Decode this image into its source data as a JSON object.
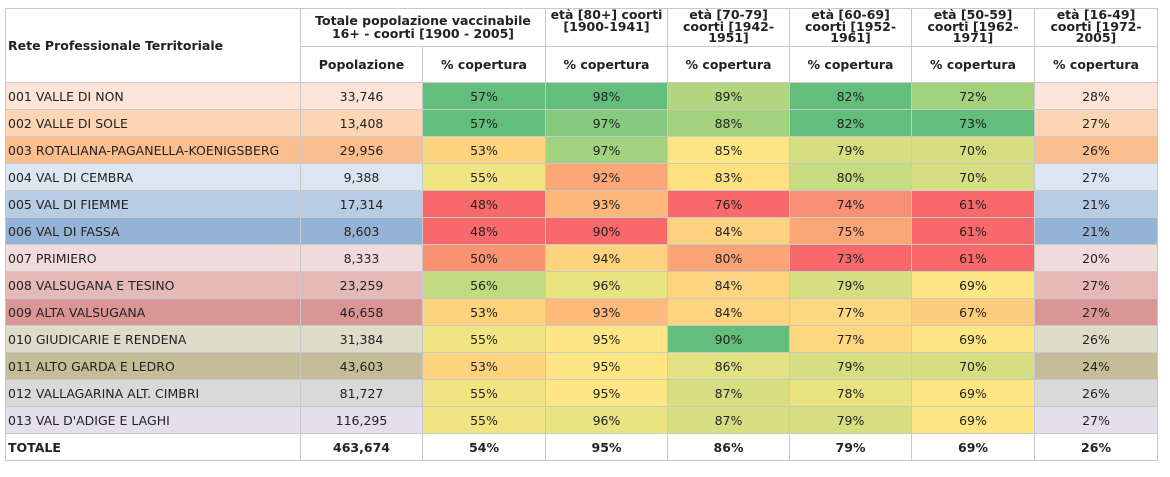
{
  "table": {
    "corner_label": "Rete Professionale Territoriale",
    "group_total": "Totale popolazione vaccinabile 16+ - coorti [1900 - 2005]",
    "age_groups": [
      {
        "label": "età [80+] coorti [1900-1941]"
      },
      {
        "label": "età [70-79] coorti [1942-1951]"
      },
      {
        "label": "età [60-69] coorti [1952-1961]"
      },
      {
        "label": "età [50-59] coorti [1962-1971]"
      },
      {
        "label": "età [16-49] coorti [1972-2005]"
      }
    ],
    "sub_headers": [
      "Popolazione",
      "% copertura",
      "% copertura",
      "% copertura",
      "% copertura",
      "% copertura",
      "% copertura"
    ],
    "colors": {
      "dark_green": "#63be7b",
      "green": "#8ccc7d",
      "light_green": "#b9d980",
      "yellow_green": "#d5df81",
      "yellow": "#fde783",
      "light_orange": "#fcc97b",
      "orange": "#fbac78",
      "salmon": "#f98f73",
      "red": "#f8696b"
    },
    "rows": [
      {
        "name": "001 VALLE DI NON",
        "pop": "33,746",
        "tot": "57%",
        "a80": "98%",
        "a70": "89%",
        "a60": "82%",
        "a50": "72%",
        "a16": "28%",
        "bg": "#fce4d6",
        "c_tot": "#63be7b",
        "c_a80": "#63be7b",
        "c_a70": "#b2d67f",
        "c_a60": "#63be7b",
        "c_a50": "#a2d27e"
      },
      {
        "name": "002 VALLE DI SOLE",
        "pop": "13,408",
        "tot": "57%",
        "a80": "97%",
        "a70": "88%",
        "a60": "82%",
        "a50": "73%",
        "a16": "27%",
        "bg": "#fcd5b4",
        "c_tot": "#63be7b",
        "c_a80": "#86ca7d",
        "c_a70": "#a2d27e",
        "c_a60": "#63be7b",
        "c_a50": "#63be7b"
      },
      {
        "name": "003 ROTALIANA-PAGANELLA-KOENIGSBERG",
        "pop": "29,956",
        "tot": "53%",
        "a80": "97%",
        "a70": "85%",
        "a60": "79%",
        "a50": "70%",
        "a16": "26%",
        "bg": "#fbbf8f",
        "c_tot": "#fdd37e",
        "c_a80": "#a3d37e",
        "c_a70": "#fde683",
        "c_a60": "#d5df81",
        "c_a50": "#d5df81"
      },
      {
        "name": "004 VAL DI CEMBRA",
        "pop": "9,388",
        "tot": "55%",
        "a80": "92%",
        "a70": "83%",
        "a60": "80%",
        "a50": "70%",
        "a16": "27%",
        "bg": "#dce6f1",
        "c_tot": "#f0e582",
        "c_a80": "#fba777",
        "c_a70": "#fee081",
        "c_a60": "#c6dc80",
        "c_a50": "#d5df81"
      },
      {
        "name": "005 VAL DI FIEMME",
        "pop": "17,314",
        "tot": "48%",
        "a80": "93%",
        "a70": "76%",
        "a60": "74%",
        "a50": "61%",
        "a16": "21%",
        "bg": "#b8cce4",
        "c_tot": "#f8696b",
        "c_a80": "#fcb87a",
        "c_a70": "#f8696b",
        "c_a60": "#f98f73",
        "c_a50": "#f8696b"
      },
      {
        "name": "006 VAL DI FASSA",
        "pop": "8,603",
        "tot": "48%",
        "a80": "90%",
        "a70": "84%",
        "a60": "75%",
        "a50": "61%",
        "a16": "21%",
        "bg": "#95b3d7",
        "c_tot": "#f8696b",
        "c_a80": "#f8696b",
        "c_a70": "#fed280",
        "c_a60": "#fba677",
        "c_a50": "#f8696b"
      },
      {
        "name": "007 PRIMIERO",
        "pop": "8,333",
        "tot": "50%",
        "a80": "94%",
        "a70": "80%",
        "a60": "73%",
        "a50": "61%",
        "a16": "20%",
        "bg": "#f2dcdb",
        "c_tot": "#f99371",
        "c_a80": "#fed380",
        "c_a70": "#fba476",
        "c_a60": "#f8696b",
        "c_a50": "#f8696b"
      },
      {
        "name": "008 VALSUGANA E TESINO",
        "pop": "23,259",
        "tot": "56%",
        "a80": "96%",
        "a70": "84%",
        "a60": "79%",
        "a50": "69%",
        "a16": "27%",
        "bg": "#e6b9b8",
        "c_tot": "#c3db80",
        "c_a80": "#e9e482",
        "c_a70": "#fed480",
        "c_a60": "#d5df81",
        "c_a50": "#fde683"
      },
      {
        "name": "009 ALTA VALSUGANA",
        "pop": "46,658",
        "tot": "53%",
        "a80": "93%",
        "a70": "84%",
        "a60": "77%",
        "a50": "67%",
        "a16": "27%",
        "bg": "#da9694",
        "c_tot": "#fdd37e",
        "c_a80": "#fcbb7a",
        "c_a70": "#fed480",
        "c_a60": "#fed881",
        "c_a50": "#fdcd7e"
      },
      {
        "name": "010 GIUDICARIE E RENDENA",
        "pop": "31,384",
        "tot": "55%",
        "a80": "95%",
        "a70": "90%",
        "a60": "77%",
        "a50": "69%",
        "a16": "26%",
        "bg": "#dddbc9",
        "c_tot": "#f0e582",
        "c_a80": "#fde683",
        "c_a70": "#63be7b",
        "c_a60": "#fed881",
        "c_a50": "#fde683"
      },
      {
        "name": "011 ALTO GARDA E LEDRO",
        "pop": "43,603",
        "tot": "53%",
        "a80": "95%",
        "a70": "86%",
        "a60": "79%",
        "a50": "70%",
        "a16": "24%",
        "bg": "#c4bd97",
        "c_tot": "#fdd37e",
        "c_a80": "#fde683",
        "c_a70": "#e3e282",
        "c_a60": "#d5df81",
        "c_a50": "#d5df81"
      },
      {
        "name": "012 VALLAGARINA ALT. CIMBRI",
        "pop": "81,727",
        "tot": "55%",
        "a80": "95%",
        "a70": "87%",
        "a60": "78%",
        "a50": "69%",
        "a16": "26%",
        "bg": "#d9d9d9",
        "c_tot": "#f0e582",
        "c_a80": "#fde683",
        "c_a70": "#d5df81",
        "c_a60": "#eae382",
        "c_a50": "#fde683"
      },
      {
        "name": "013 VAL D'ADIGE E LAGHI",
        "pop": "116,295",
        "tot": "55%",
        "a80": "96%",
        "a70": "87%",
        "a60": "79%",
        "a50": "69%",
        "a16": "27%",
        "bg": "#e4dfec",
        "c_tot": "#f0e582",
        "c_a80": "#e9e482",
        "c_a70": "#d5df81",
        "c_a60": "#d5df81",
        "c_a50": "#fde683"
      }
    ],
    "total": {
      "name": "TOTALE",
      "pop": "463,674",
      "tot": "54%",
      "a80": "95%",
      "a70": "86%",
      "a60": "79%",
      "a50": "69%",
      "a16": "26%"
    }
  }
}
